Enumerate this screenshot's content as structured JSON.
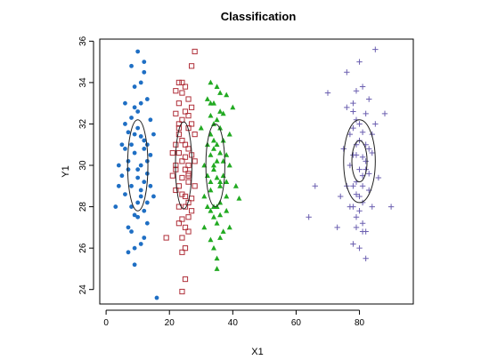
{
  "chart_data": {
    "type": "scatter",
    "title": "Classification",
    "xlabel": "X1",
    "ylabel": "Y1",
    "xlim": [
      -2,
      97
    ],
    "ylim": [
      23.3,
      36.1
    ],
    "xticks": [
      0,
      20,
      40,
      60,
      80
    ],
    "yticks": [
      24,
      26,
      28,
      30,
      32,
      34,
      36
    ],
    "grid": false,
    "legend": "none",
    "series": [
      {
        "marker": "filled-circle",
        "color": "#1f6fc4",
        "points": [
          [
            7,
            30.2
          ],
          [
            10,
            29.8
          ],
          [
            9,
            31.5
          ],
          [
            11,
            28.5
          ],
          [
            8,
            32.3
          ],
          [
            12,
            29.2
          ],
          [
            6,
            30.8
          ],
          [
            10,
            27.5
          ],
          [
            13,
            31.0
          ],
          [
            9,
            26.0
          ],
          [
            11,
            33.0
          ],
          [
            8,
            28.0
          ],
          [
            12,
            34.5
          ],
          [
            7,
            25.8
          ],
          [
            14,
            30.5
          ],
          [
            5,
            29.5
          ],
          [
            10,
            35.5
          ],
          [
            13,
            27.2
          ],
          [
            6,
            32.0
          ],
          [
            11,
            30.0
          ],
          [
            9,
            33.8
          ],
          [
            12,
            26.5
          ],
          [
            8,
            29.0
          ],
          [
            15,
            31.5
          ],
          [
            4,
            30.0
          ],
          [
            10,
            31.8
          ],
          [
            7,
            27.0
          ],
          [
            13,
            33.2
          ],
          [
            11,
            28.8
          ],
          [
            9,
            30.6
          ],
          [
            14,
            29.0
          ],
          [
            6,
            33.0
          ],
          [
            12,
            31.2
          ],
          [
            8,
            26.8
          ],
          [
            10,
            32.6
          ],
          [
            5,
            31.0
          ],
          [
            13,
            28.2
          ],
          [
            11,
            34.0
          ],
          [
            16,
            23.6
          ],
          [
            9,
            25.2
          ],
          [
            7,
            29.8
          ],
          [
            12,
            27.8
          ],
          [
            14,
            32.2
          ],
          [
            3,
            28.0
          ],
          [
            10,
            29.4
          ],
          [
            8,
            31.0
          ],
          [
            11,
            26.2
          ],
          [
            13,
            30.2
          ],
          [
            6,
            28.6
          ],
          [
            9,
            32.8
          ],
          [
            12,
            35.0
          ],
          [
            15,
            28.5
          ],
          [
            7,
            31.6
          ],
          [
            10,
            28.2
          ],
          [
            4,
            29.0
          ],
          [
            11,
            31.4
          ],
          [
            8,
            34.8
          ],
          [
            13,
            29.6
          ],
          [
            9,
            27.6
          ],
          [
            12,
            30.8
          ]
        ]
      },
      {
        "marker": "open-square",
        "color": "#b0303a",
        "points": [
          [
            24,
            30.2
          ],
          [
            26,
            29.5
          ],
          [
            23,
            31.5
          ],
          [
            25,
            28.5
          ],
          [
            27,
            32.0
          ],
          [
            22,
            30.0
          ],
          [
            24,
            33.5
          ],
          [
            26,
            27.5
          ],
          [
            23,
            29.0
          ],
          [
            25,
            31.0
          ],
          [
            28,
            35.5
          ],
          [
            24,
            26.5
          ],
          [
            22,
            32.5
          ],
          [
            26,
            30.8
          ],
          [
            25,
            24.5
          ],
          [
            23,
            28.0
          ],
          [
            27,
            30.5
          ],
          [
            24,
            34.0
          ],
          [
            21,
            29.5
          ],
          [
            26,
            31.8
          ],
          [
            25,
            27.0
          ],
          [
            23,
            33.0
          ],
          [
            28,
            29.0
          ],
          [
            24,
            31.2
          ],
          [
            22,
            28.8
          ],
          [
            26,
            33.2
          ],
          [
            25,
            29.8
          ],
          [
            27,
            27.8
          ],
          [
            24,
            25.8
          ],
          [
            23,
            30.6
          ],
          [
            26,
            28.2
          ],
          [
            25,
            32.6
          ],
          [
            22,
            31.0
          ],
          [
            27,
            34.8
          ],
          [
            24,
            28.6
          ],
          [
            26,
            26.8
          ],
          [
            23,
            32.0
          ],
          [
            25,
            30.4
          ],
          [
            19,
            26.5
          ],
          [
            28,
            31.5
          ],
          [
            24,
            23.9
          ],
          [
            26,
            29.2
          ],
          [
            23,
            27.2
          ],
          [
            25,
            33.8
          ],
          [
            27,
            28.4
          ],
          [
            22,
            29.8
          ],
          [
            24,
            32.2
          ],
          [
            26,
            30.0
          ],
          [
            25,
            28.0
          ],
          [
            23,
            31.8
          ],
          [
            27,
            32.8
          ],
          [
            24,
            29.4
          ],
          [
            21,
            30.6
          ],
          [
            26,
            32.4
          ],
          [
            25,
            26.0
          ],
          [
            23,
            34.0
          ],
          [
            28,
            30.2
          ],
          [
            24,
            27.4
          ],
          [
            22,
            33.6
          ],
          [
            26,
            29.6
          ]
        ]
      },
      {
        "marker": "filled-triangle",
        "color": "#22aa22",
        "points": [
          [
            34,
            30.0
          ],
          [
            36,
            29.0
          ],
          [
            33,
            31.5
          ],
          [
            35,
            28.0
          ],
          [
            37,
            32.5
          ],
          [
            32,
            29.5
          ],
          [
            34,
            27.5
          ],
          [
            38,
            30.5
          ],
          [
            33,
            33.0
          ],
          [
            36,
            26.5
          ],
          [
            35,
            31.0
          ],
          [
            31,
            28.5
          ],
          [
            37,
            29.5
          ],
          [
            34,
            32.0
          ],
          [
            39,
            27.0
          ],
          [
            33,
            30.5
          ],
          [
            36,
            33.5
          ],
          [
            35,
            25.5
          ],
          [
            32,
            31.0
          ],
          [
            38,
            28.5
          ],
          [
            34,
            29.8
          ],
          [
            36,
            31.8
          ],
          [
            33,
            27.8
          ],
          [
            37,
            30.2
          ],
          [
            35,
            33.8
          ],
          [
            31,
            30.0
          ],
          [
            39,
            31.5
          ],
          [
            34,
            26.0
          ],
          [
            36,
            28.2
          ],
          [
            33,
            32.4
          ],
          [
            38,
            29.2
          ],
          [
            35,
            27.2
          ],
          [
            32,
            33.2
          ],
          [
            37,
            26.8
          ],
          [
            34,
            31.2
          ],
          [
            36,
            30.6
          ],
          [
            40,
            32.8
          ],
          [
            33,
            28.8
          ],
          [
            35,
            29.4
          ],
          [
            31,
            27.0
          ],
          [
            38,
            33.4
          ],
          [
            34,
            28.0
          ],
          [
            36,
            27.6
          ],
          [
            39,
            30.0
          ],
          [
            33,
            26.4
          ],
          [
            35,
            32.2
          ],
          [
            37,
            31.2
          ],
          [
            32,
            28.0
          ],
          [
            34,
            33.0
          ],
          [
            36,
            29.2
          ],
          [
            41,
            29.0
          ],
          [
            33,
            29.2
          ],
          [
            35,
            25.0
          ],
          [
            30,
            31.8
          ],
          [
            38,
            27.8
          ],
          [
            34,
            30.8
          ],
          [
            36,
            32.6
          ],
          [
            42,
            28.4
          ],
          [
            33,
            34.0
          ],
          [
            35,
            30.2
          ]
        ]
      },
      {
        "marker": "plus",
        "color": "#6b5fb0",
        "points": [
          [
            79,
            30.5
          ],
          [
            81,
            29.5
          ],
          [
            78,
            31.8
          ],
          [
            80,
            28.5
          ],
          [
            82,
            32.5
          ],
          [
            77,
            30.0
          ],
          [
            79,
            27.5
          ],
          [
            83,
            30.8
          ],
          [
            78,
            33.0
          ],
          [
            81,
            26.8
          ],
          [
            80,
            31.2
          ],
          [
            76,
            29.0
          ],
          [
            82,
            29.8
          ],
          [
            79,
            32.2
          ],
          [
            84,
            28.0
          ],
          [
            78,
            30.5
          ],
          [
            81,
            33.8
          ],
          [
            80,
            26.0
          ],
          [
            77,
            31.5
          ],
          [
            83,
            28.8
          ],
          [
            79,
            29.2
          ],
          [
            81,
            31.6
          ],
          [
            78,
            28.0
          ],
          [
            82,
            30.2
          ],
          [
            80,
            35.0
          ],
          [
            75,
            30.8
          ],
          [
            84,
            31.5
          ],
          [
            79,
            27.0
          ],
          [
            81,
            28.2
          ],
          [
            78,
            32.6
          ],
          [
            83,
            29.6
          ],
          [
            80,
            27.8
          ],
          [
            76,
            32.8
          ],
          [
            82,
            26.8
          ],
          [
            79,
            31.0
          ],
          [
            81,
            30.4
          ],
          [
            85,
            32.0
          ],
          [
            78,
            29.0
          ],
          [
            80,
            29.8
          ],
          [
            74,
            28.5
          ],
          [
            83,
            33.2
          ],
          [
            79,
            28.6
          ],
          [
            81,
            27.2
          ],
          [
            84,
            30.6
          ],
          [
            78,
            26.2
          ],
          [
            80,
            32.0
          ],
          [
            82,
            31.0
          ],
          [
            77,
            28.0
          ],
          [
            79,
            33.6
          ],
          [
            81,
            29.0
          ],
          [
            86,
            29.4
          ],
          [
            70,
            33.5
          ],
          [
            66,
            29.0
          ],
          [
            88,
            32.5
          ],
          [
            73,
            27.0
          ],
          [
            64,
            27.5
          ],
          [
            90,
            28.0
          ],
          [
            82,
            25.5
          ],
          [
            85,
            35.6
          ],
          [
            76,
            34.5
          ]
        ]
      }
    ],
    "ellipses": [
      {
        "cx": 10,
        "cy": 30.0,
        "rx": 3.2,
        "ry": 2.2,
        "color": "#222222"
      },
      {
        "cx": 24.5,
        "cy": 30.0,
        "rx": 2.6,
        "ry": 2.1,
        "color": "#222222"
      },
      {
        "cx": 34.5,
        "cy": 30.0,
        "rx": 3.0,
        "ry": 2.0,
        "color": "#222222"
      },
      {
        "cx": 80,
        "cy": 30.2,
        "rx": 5.0,
        "ry": 2.0,
        "color": "#222222"
      },
      {
        "cx": 80,
        "cy": 30.2,
        "rx": 2.4,
        "ry": 1.0,
        "color": "#222222"
      }
    ]
  }
}
